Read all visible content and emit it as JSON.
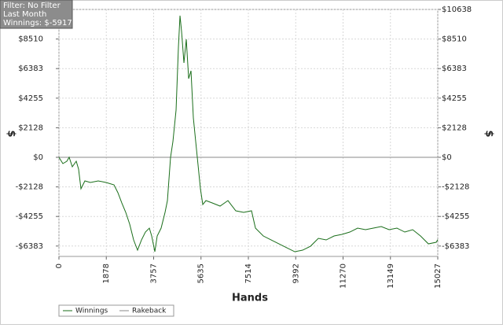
{
  "chart_data": {
    "type": "line",
    "annotations": [
      "Filter: No Filter",
      "Last Month",
      "Winnings: $-5917.25"
    ],
    "xlabel": "Hands",
    "ylabel": "$",
    "y2label": "$",
    "xlim": [
      0,
      15027
    ],
    "xticks": [
      0,
      1878,
      3757,
      5635,
      7514,
      9392,
      11270,
      13149,
      15027
    ],
    "ylim": [
      -7130,
      10638
    ],
    "yticks": [
      {
        "value": -6383,
        "label": "-$6383"
      },
      {
        "value": -4255,
        "label": "-$4255"
      },
      {
        "value": -2128,
        "label": "-$2128"
      },
      {
        "value": 0,
        "label": "$0"
      },
      {
        "value": 2128,
        "label": "$2128"
      },
      {
        "value": 4255,
        "label": "$4255"
      },
      {
        "value": 6383,
        "label": "$6383"
      },
      {
        "value": 8510,
        "label": "$8510"
      },
      {
        "value": 10638,
        "label": "$10638"
      }
    ],
    "grid": true,
    "x": [
      0,
      156,
      312,
      405,
      530,
      686,
      779,
      873,
      1029,
      1247,
      1559,
      1871,
      2183,
      2339,
      2494,
      2650,
      2806,
      2962,
      3118,
      3274,
      3430,
      3586,
      3679,
      3804,
      3897,
      4053,
      4209,
      4303,
      4427,
      4521,
      4646,
      4739,
      4802,
      4864,
      4958,
      5051,
      5145,
      5238,
      5332,
      5425,
      5519,
      5612,
      5706,
      5831,
      6080,
      6392,
      6704,
      7015,
      7327,
      7639,
      7795,
      8107,
      8419,
      8730,
      9042,
      9354,
      9666,
      9978,
      10290,
      10601,
      10913,
      11225,
      11537,
      11848,
      12160,
      12472,
      12784,
      13096,
      13407,
      13719,
      14031,
      14343,
      14655,
      14966,
      15027
    ],
    "series": [
      {
        "name": "Winnings",
        "color": "#1a6e1a",
        "values": [
          0,
          -453,
          -283,
          0,
          -679,
          -283,
          -849,
          -2264,
          -1698,
          -1811,
          -1698,
          -1811,
          -1981,
          -2547,
          -3283,
          -3962,
          -4811,
          -5943,
          -6679,
          -5943,
          -5377,
          -5094,
          -5660,
          -6792,
          -5660,
          -5094,
          -3962,
          -3113,
          0,
          1132,
          3396,
          7924,
          10188,
          9056,
          6792,
          8490,
          5660,
          6226,
          2830,
          1132,
          -566,
          -2264,
          -3396,
          -3113,
          -3283,
          -3509,
          -3113,
          -3849,
          -3962,
          -3849,
          -5094,
          -5660,
          -5943,
          -6226,
          -6509,
          -6792,
          -6679,
          -6396,
          -5830,
          -5943,
          -5660,
          -5547,
          -5377,
          -5094,
          -5207,
          -5094,
          -4981,
          -5207,
          -5094,
          -5377,
          -5207,
          -5660,
          -6226,
          -6113,
          -5917.25
        ]
      },
      {
        "name": "Rakeback",
        "color": "#8a8a8a",
        "values": [
          0,
          0,
          0,
          0,
          0,
          0,
          0,
          0,
          0,
          0,
          0,
          0,
          0,
          0,
          0,
          0,
          0,
          0,
          0,
          0,
          0,
          0,
          0,
          0,
          0,
          0,
          0,
          0,
          0,
          0,
          0,
          0,
          0,
          0,
          0,
          0,
          0,
          0,
          0,
          0,
          0,
          0,
          0,
          0,
          0,
          0,
          0,
          0,
          0,
          0,
          0,
          0,
          0,
          0,
          0,
          0,
          0,
          0,
          0,
          0,
          0,
          0,
          0,
          0,
          0,
          0,
          0,
          0,
          0,
          0,
          0,
          0,
          0,
          0,
          0
        ]
      }
    ]
  }
}
